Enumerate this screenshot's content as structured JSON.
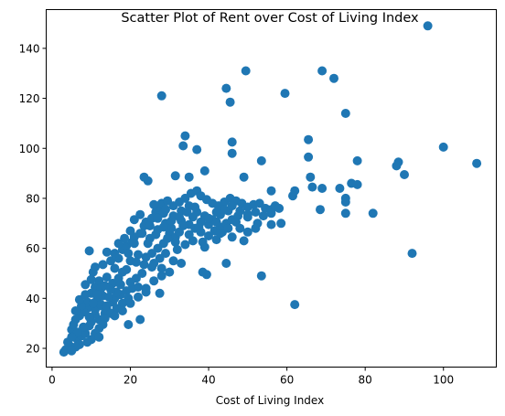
{
  "chart_data": {
    "type": "scatter",
    "title": "Scatter Plot of Rent over Cost of Living Index",
    "xlabel": "Cost of Living Index",
    "ylabel": "",
    "xlim": [
      -1.5,
      113.5
    ],
    "ylim": [
      12.5,
      155.5
    ],
    "xticks": [
      0,
      20,
      40,
      60,
      80,
      100
    ],
    "yticks": [
      20,
      40,
      60,
      80,
      100,
      120,
      140
    ],
    "grid": false,
    "point_color": "#1f77b4",
    "series": [
      {
        "points": [
          [
            96,
            149
          ],
          [
            69,
            131
          ],
          [
            49.5,
            131
          ],
          [
            72,
            128
          ],
          [
            44.5,
            124
          ],
          [
            28,
            121
          ],
          [
            59.5,
            122
          ],
          [
            45.5,
            118.5
          ],
          [
            75,
            114
          ],
          [
            34,
            105
          ],
          [
            46,
            102.5
          ],
          [
            37,
            99.5
          ],
          [
            33.5,
            101
          ],
          [
            46,
            98
          ],
          [
            65.5,
            103.5
          ],
          [
            65.5,
            96.5
          ],
          [
            100,
            100.5
          ],
          [
            108.5,
            94
          ],
          [
            88.5,
            94.5
          ],
          [
            88,
            93
          ],
          [
            78,
            95
          ],
          [
            90,
            89.5
          ],
          [
            53.5,
            95
          ],
          [
            39,
            91
          ],
          [
            31.5,
            89
          ],
          [
            23.5,
            88.5
          ],
          [
            24.5,
            87
          ],
          [
            35,
            88.5
          ],
          [
            49,
            88.5
          ],
          [
            76.5,
            86
          ],
          [
            78,
            85.5
          ],
          [
            66,
            88.5
          ],
          [
            69,
            84
          ],
          [
            66.5,
            84.5
          ],
          [
            73.5,
            84
          ],
          [
            75,
            80
          ],
          [
            75,
            78.5
          ],
          [
            61.5,
            81
          ],
          [
            62,
            83
          ],
          [
            56,
            83
          ],
          [
            82,
            74
          ],
          [
            75,
            74
          ],
          [
            68.5,
            75.5
          ],
          [
            58.5,
            70
          ],
          [
            56,
            69.5
          ],
          [
            50,
            72.5
          ],
          [
            52.5,
            70
          ],
          [
            49,
            63
          ],
          [
            43.5,
            66.5
          ],
          [
            92,
            58
          ],
          [
            53.5,
            49
          ],
          [
            62,
            37.5
          ],
          [
            44.5,
            54
          ],
          [
            38.5,
            50.5
          ],
          [
            39.5,
            49.5
          ],
          [
            27.5,
            42
          ],
          [
            22.5,
            31.5
          ],
          [
            19.5,
            29.5
          ],
          [
            3,
            18.5
          ],
          [
            3.5,
            19.5
          ],
          [
            4.5,
            21
          ],
          [
            4,
            22.5
          ],
          [
            6.5,
            23.5
          ],
          [
            7.5,
            25
          ],
          [
            8.5,
            26
          ],
          [
            5,
            27.5
          ],
          [
            9.5,
            29
          ],
          [
            10,
            30.5
          ],
          [
            12,
            31.5
          ],
          [
            11,
            33.5
          ],
          [
            13.5,
            34
          ],
          [
            14,
            35.5
          ],
          [
            12.5,
            37
          ],
          [
            15.5,
            38.5
          ],
          [
            16,
            40
          ],
          [
            17.5,
            41.5
          ],
          [
            19,
            43
          ],
          [
            20.5,
            44
          ],
          [
            10,
            42
          ],
          [
            11,
            44.5
          ],
          [
            12,
            47
          ],
          [
            14,
            48.5
          ],
          [
            10.5,
            50.5
          ],
          [
            11,
            52.5
          ],
          [
            13,
            53.5
          ],
          [
            15,
            55
          ],
          [
            17,
            56
          ],
          [
            16,
            58
          ],
          [
            18,
            59.5
          ],
          [
            19,
            61
          ],
          [
            20.5,
            62.5
          ],
          [
            21,
            64.5
          ],
          [
            22.5,
            66
          ],
          [
            18.5,
            64
          ],
          [
            20,
            67
          ],
          [
            23.5,
            69
          ],
          [
            24,
            70.5
          ],
          [
            25.5,
            72
          ],
          [
            21,
            71.5
          ],
          [
            22.5,
            73.5
          ],
          [
            26.5,
            74.5
          ],
          [
            27,
            76.5
          ],
          [
            28,
            78
          ],
          [
            29.5,
            79
          ],
          [
            31,
            77
          ],
          [
            32.5,
            78.5
          ],
          [
            34,
            80
          ],
          [
            35.5,
            82
          ],
          [
            37,
            83
          ],
          [
            38,
            81
          ],
          [
            39.5,
            79.5
          ],
          [
            41,
            78
          ],
          [
            42.5,
            77
          ],
          [
            44,
            78.5
          ],
          [
            45.5,
            80
          ],
          [
            47,
            79
          ],
          [
            48.5,
            78
          ],
          [
            50,
            76.5
          ],
          [
            51.5,
            77.5
          ],
          [
            53,
            78
          ],
          [
            54.5,
            76
          ],
          [
            56,
            75.5
          ],
          [
            57,
            77
          ],
          [
            33,
            71
          ],
          [
            35,
            69.5
          ],
          [
            36.5,
            68
          ],
          [
            38,
            66.5
          ],
          [
            40,
            65
          ],
          [
            41.5,
            67
          ],
          [
            43,
            68.5
          ],
          [
            44.5,
            70
          ],
          [
            46,
            71.5
          ],
          [
            47.5,
            73
          ],
          [
            30,
            66
          ],
          [
            31.5,
            64.5
          ],
          [
            28.5,
            62
          ],
          [
            27,
            60
          ],
          [
            25.5,
            58
          ],
          [
            24,
            56.5
          ],
          [
            26,
            54
          ],
          [
            28,
            52
          ],
          [
            30,
            50.5
          ],
          [
            23,
            50
          ],
          [
            21.5,
            48
          ],
          [
            20,
            46.5
          ],
          [
            22,
            44.5
          ],
          [
            24,
            42.5
          ],
          [
            19.5,
            40
          ],
          [
            18,
            38
          ],
          [
            16.5,
            36
          ],
          [
            15,
            34
          ],
          [
            13.5,
            32
          ],
          [
            9,
            36
          ],
          [
            8,
            34.5
          ],
          [
            7,
            33
          ],
          [
            6,
            31.5
          ],
          [
            5.5,
            29.5
          ],
          [
            9,
            38.5
          ],
          [
            7.5,
            37
          ],
          [
            11.5,
            39.5
          ],
          [
            13,
            41
          ],
          [
            8.5,
            45.5
          ],
          [
            10,
            47.5
          ],
          [
            9.5,
            59
          ],
          [
            14,
            58.5
          ],
          [
            17,
            62
          ],
          [
            12.5,
            44
          ],
          [
            32,
            59.5
          ],
          [
            34,
            61.5
          ],
          [
            36,
            63
          ],
          [
            38.5,
            62.5
          ],
          [
            29,
            58
          ],
          [
            31,
            55
          ],
          [
            33,
            54
          ],
          [
            25,
            64
          ],
          [
            27,
            67.5
          ],
          [
            29,
            70
          ],
          [
            31,
            73
          ],
          [
            33,
            75
          ],
          [
            35,
            77
          ],
          [
            37,
            74.5
          ],
          [
            39,
            73
          ],
          [
            41,
            71.5
          ],
          [
            43,
            73.5
          ],
          [
            45,
            75
          ],
          [
            36,
            72.5
          ],
          [
            38,
            70.5
          ],
          [
            40,
            69.5
          ],
          [
            42,
            70.5
          ],
          [
            26,
            77.5
          ],
          [
            28.5,
            74
          ],
          [
            30.5,
            68
          ],
          [
            32.5,
            66.5
          ],
          [
            48,
            68
          ],
          [
            50,
            66.5
          ],
          [
            52,
            68
          ],
          [
            46,
            64.5
          ],
          [
            42,
            63.5
          ],
          [
            39,
            60.5
          ],
          [
            18,
            50.5
          ],
          [
            16,
            52
          ],
          [
            20,
            55
          ],
          [
            22,
            57.5
          ],
          [
            15.5,
            46
          ],
          [
            17,
            48
          ],
          [
            13,
            29.5
          ],
          [
            12,
            28
          ],
          [
            8,
            28.5
          ],
          [
            6.5,
            26.5
          ],
          [
            5,
            24.5
          ],
          [
            11,
            35.5
          ],
          [
            12.5,
            37.5
          ],
          [
            14.5,
            40.5
          ],
          [
            16.5,
            42.5
          ],
          [
            7,
            39.5
          ],
          [
            8.5,
            41.5
          ],
          [
            6,
            35
          ],
          [
            9.5,
            32.5
          ],
          [
            24.5,
            62
          ],
          [
            26.5,
            65.5
          ],
          [
            28.5,
            68.5
          ],
          [
            30.5,
            71
          ],
          [
            32.5,
            72.5
          ],
          [
            34.5,
            74.5
          ],
          [
            36.5,
            76.5
          ],
          [
            29,
            75.5
          ],
          [
            27,
            72
          ],
          [
            25,
            69
          ],
          [
            23,
            66
          ],
          [
            21,
            62
          ],
          [
            19.5,
            58
          ],
          [
            35,
            65.5
          ],
          [
            37.5,
            68.5
          ],
          [
            40,
            72
          ],
          [
            42,
            74.5
          ],
          [
            44,
            75.5
          ],
          [
            46,
            77
          ],
          [
            48,
            75
          ],
          [
            50,
            73.5
          ],
          [
            52,
            74.5
          ],
          [
            54,
            73
          ],
          [
            56,
            74
          ],
          [
            58,
            76
          ],
          [
            47,
            70.5
          ],
          [
            45,
            68
          ],
          [
            43,
            66
          ],
          [
            33.5,
            69
          ],
          [
            31.5,
            62.5
          ],
          [
            29.5,
            64
          ],
          [
            27.5,
            56
          ],
          [
            25.5,
            52.5
          ],
          [
            23.5,
            53.5
          ],
          [
            21.5,
            54.5
          ],
          [
            19,
            51.5
          ],
          [
            17.5,
            45.5
          ],
          [
            15,
            43.5
          ],
          [
            13.5,
            45
          ],
          [
            11.5,
            41.5
          ],
          [
            10.5,
            38
          ],
          [
            14,
            37
          ],
          [
            16,
            33
          ],
          [
            18,
            35
          ],
          [
            20,
            38
          ],
          [
            22,
            40.5
          ],
          [
            24,
            44
          ],
          [
            26,
            47
          ],
          [
            28,
            49
          ],
          [
            10,
            23.5
          ],
          [
            9,
            22.5
          ],
          [
            7,
            21.5
          ],
          [
            6,
            20.5
          ],
          [
            5,
            19
          ],
          [
            11,
            26
          ],
          [
            12,
            24.5
          ]
        ]
      }
    ]
  }
}
